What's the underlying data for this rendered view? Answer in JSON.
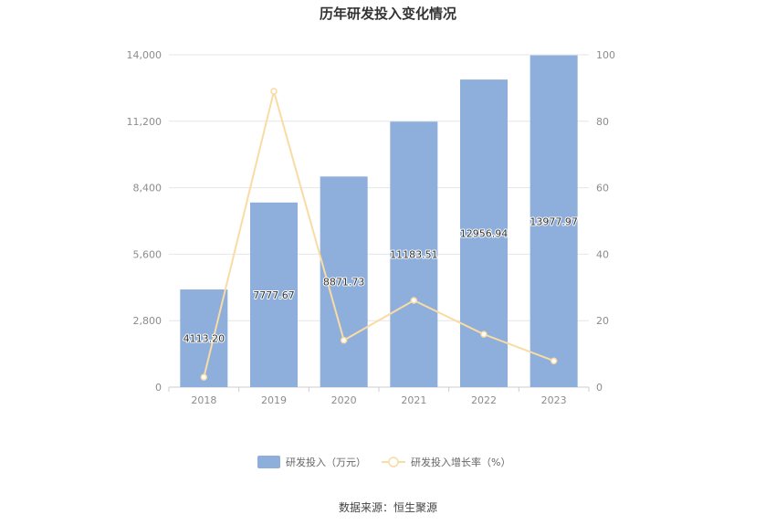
{
  "chart_data": {
    "type": "bar",
    "title": "历年研发投入变化情况",
    "categories": [
      "2018",
      "2019",
      "2020",
      "2021",
      "2022",
      "2023"
    ],
    "series": [
      {
        "name": "研发投入（万元）",
        "type": "bar",
        "axis": "left",
        "color": "#8eaedb",
        "values": [
          4113.2,
          7777.67,
          8871.73,
          11183.51,
          12956.94,
          13977.97
        ],
        "labels": [
          "4113.20",
          "7777.67",
          "8871.73",
          "11183.51",
          "12956.94",
          "13977.97"
        ]
      },
      {
        "name": "研发投入增长率（%）",
        "type": "line",
        "axis": "right",
        "color": "#f9dba4",
        "values": [
          3.0,
          89.0,
          14.1,
          26.1,
          15.9,
          7.9
        ]
      }
    ],
    "y_left": {
      "min": 0,
      "max": 14000,
      "ticks": [
        "0",
        "2,800",
        "5,600",
        "8,400",
        "11,200",
        "14,000"
      ]
    },
    "y_right": {
      "min": 0,
      "max": 100,
      "ticks": [
        "0",
        "20",
        "40",
        "60",
        "80",
        "100"
      ]
    },
    "grid": true,
    "legend_position": "bottom"
  },
  "footer": {
    "source": "数据来源：恒生聚源"
  }
}
